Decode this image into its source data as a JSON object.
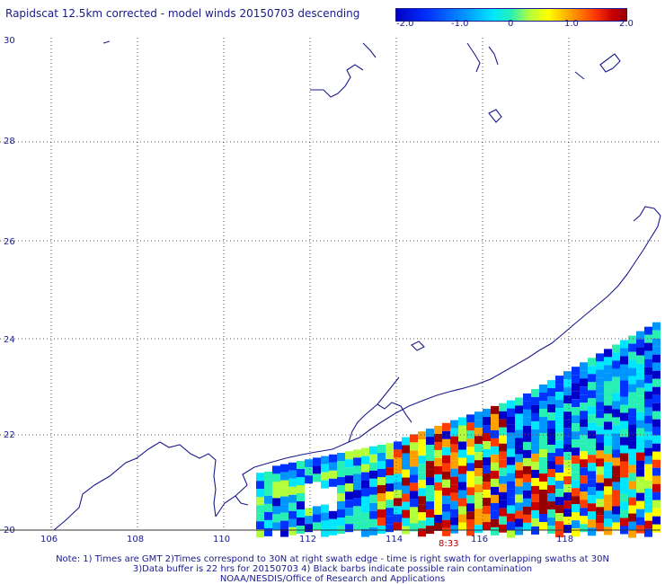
{
  "title": "Rapidscat 12.5km corrected - model winds 20150703 descending",
  "colorbar": {
    "ticks": [
      "-2.0",
      "-1.0",
      "0",
      "1.0",
      "2.0"
    ],
    "range": [
      -2.0,
      2.0
    ]
  },
  "axes": {
    "lon_labels": [
      "106",
      "108",
      "110",
      "112",
      "114",
      "116",
      "118"
    ],
    "lat_labels": [
      "30",
      "28",
      "26",
      "24",
      "22",
      "20"
    ]
  },
  "swath_time": "8:33",
  "notes": {
    "line1": "Note: 1) Times are GMT 2)Times correspond to 30N at right swath edge - time is right swath for overlapping swaths at 30N",
    "line2": "3)Data buffer is 22 hrs for 20150703 4) Black barbs indicate possible rain contamination",
    "line3": "NOAA/NESDIS/Office of Research and Applications"
  },
  "colors": {
    "coastline": "#1a1a8c",
    "grid": "#555555",
    "text": "#1a1a8c",
    "time_label": "#b40000"
  }
}
